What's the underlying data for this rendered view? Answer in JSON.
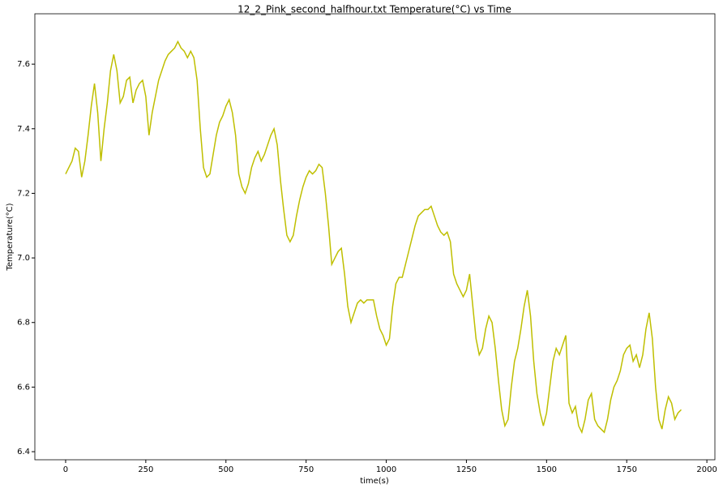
{
  "chart_data": {
    "type": "line",
    "title": "12_2_Pink_second_halfhour.txt  Temperature(°C) vs Time",
    "xlabel": "time(s)",
    "ylabel": "Temperature(°C)",
    "x": [
      0,
      10,
      20,
      30,
      40,
      50,
      60,
      70,
      80,
      90,
      100,
      110,
      120,
      130,
      140,
      150,
      160,
      170,
      180,
      190,
      200,
      210,
      220,
      230,
      240,
      250,
      260,
      270,
      280,
      290,
      300,
      310,
      320,
      330,
      340,
      350,
      360,
      370,
      380,
      390,
      400,
      410,
      420,
      430,
      440,
      450,
      460,
      470,
      480,
      490,
      500,
      510,
      520,
      530,
      540,
      550,
      560,
      570,
      580,
      590,
      600,
      610,
      620,
      630,
      640,
      650,
      660,
      670,
      680,
      690,
      700,
      710,
      720,
      730,
      740,
      750,
      760,
      770,
      780,
      790,
      800,
      810,
      820,
      830,
      840,
      850,
      860,
      870,
      880,
      890,
      900,
      910,
      920,
      930,
      940,
      950,
      960,
      970,
      980,
      990,
      1000,
      1010,
      1020,
      1030,
      1040,
      1050,
      1060,
      1070,
      1080,
      1090,
      1100,
      1110,
      1120,
      1130,
      1140,
      1150,
      1160,
      1170,
      1180,
      1190,
      1200,
      1210,
      1220,
      1230,
      1240,
      1250,
      1260,
      1270,
      1280,
      1290,
      1300,
      1310,
      1320,
      1330,
      1340,
      1350,
      1360,
      1370,
      1380,
      1390,
      1400,
      1410,
      1420,
      1430,
      1440,
      1450,
      1460,
      1470,
      1480,
      1490,
      1500,
      1510,
      1520,
      1530,
      1540,
      1550,
      1560,
      1570,
      1580,
      1590,
      1600,
      1610,
      1620,
      1630,
      1640,
      1650,
      1660,
      1670,
      1680,
      1690,
      1700,
      1710,
      1720,
      1730,
      1740,
      1750,
      1760,
      1770,
      1780,
      1790,
      1800,
      1810,
      1820,
      1830,
      1840,
      1850,
      1860,
      1870,
      1880,
      1890,
      1900,
      1910,
      1920
    ],
    "series": [
      {
        "name": "Temperature",
        "color": "#bfbf00",
        "values": [
          7.26,
          7.28,
          7.3,
          7.34,
          7.33,
          7.25,
          7.3,
          7.38,
          7.47,
          7.54,
          7.45,
          7.3,
          7.4,
          7.48,
          7.58,
          7.63,
          7.58,
          7.48,
          7.5,
          7.55,
          7.56,
          7.48,
          7.52,
          7.54,
          7.55,
          7.5,
          7.38,
          7.45,
          7.5,
          7.55,
          7.58,
          7.61,
          7.63,
          7.64,
          7.65,
          7.67,
          7.65,
          7.64,
          7.62,
          7.64,
          7.62,
          7.55,
          7.4,
          7.28,
          7.25,
          7.26,
          7.32,
          7.38,
          7.42,
          7.44,
          7.47,
          7.49,
          7.45,
          7.38,
          7.26,
          7.22,
          7.2,
          7.23,
          7.28,
          7.31,
          7.33,
          7.3,
          7.32,
          7.35,
          7.38,
          7.4,
          7.35,
          7.24,
          7.15,
          7.07,
          7.05,
          7.07,
          7.13,
          7.18,
          7.22,
          7.25,
          7.27,
          7.26,
          7.27,
          7.29,
          7.28,
          7.2,
          7.1,
          6.98,
          7.0,
          7.02,
          7.03,
          6.95,
          6.85,
          6.8,
          6.83,
          6.86,
          6.87,
          6.86,
          6.87,
          6.87,
          6.87,
          6.82,
          6.78,
          6.76,
          6.73,
          6.75,
          6.85,
          6.92,
          6.94,
          6.94,
          6.98,
          7.02,
          7.06,
          7.1,
          7.13,
          7.14,
          7.15,
          7.15,
          7.16,
          7.13,
          7.1,
          7.08,
          7.07,
          7.08,
          7.05,
          6.95,
          6.92,
          6.9,
          6.88,
          6.9,
          6.95,
          6.85,
          6.75,
          6.7,
          6.72,
          6.78,
          6.82,
          6.8,
          6.72,
          6.62,
          6.53,
          6.48,
          6.5,
          6.6,
          6.68,
          6.72,
          6.78,
          6.85,
          6.9,
          6.82,
          6.68,
          6.58,
          6.52,
          6.48,
          6.52,
          6.6,
          6.68,
          6.72,
          6.7,
          6.73,
          6.76,
          6.55,
          6.52,
          6.54,
          6.48,
          6.46,
          6.5,
          6.56,
          6.58,
          6.5,
          6.48,
          6.47,
          6.46,
          6.5,
          6.56,
          6.6,
          6.62,
          6.65,
          6.7,
          6.72,
          6.73,
          6.68,
          6.7,
          6.66,
          6.7,
          6.78,
          6.83,
          6.75,
          6.6,
          6.5,
          6.47,
          6.53,
          6.57,
          6.55,
          6.5,
          6.52,
          6.53
        ]
      }
    ],
    "xlim": [
      -96,
      2025
    ],
    "ylim": [
      6.375,
      7.756
    ],
    "xticks": [
      0,
      250,
      500,
      750,
      1000,
      1250,
      1500,
      1750,
      2000
    ],
    "yticks": [
      6.4,
      6.6,
      6.8,
      {
        "value": 7,
        "label": "7.0"
      },
      7.2,
      7.4,
      7.6
    ]
  }
}
